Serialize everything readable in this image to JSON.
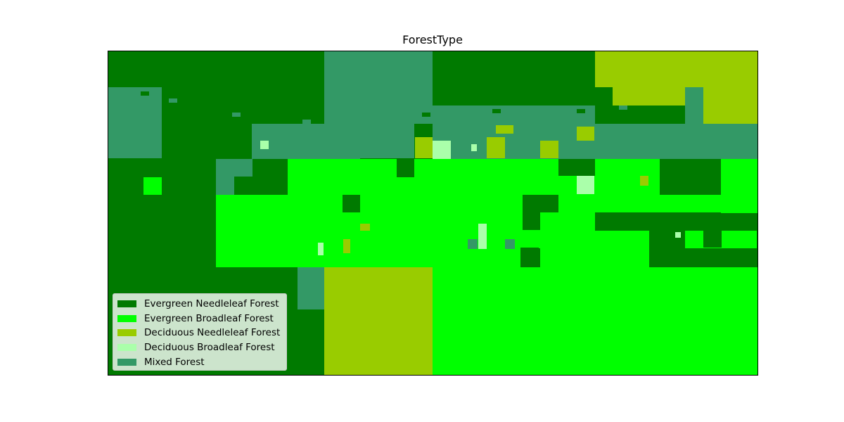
{
  "title": "ForestType",
  "legend": [
    {
      "label": "Evergreen Needleleaf Forest",
      "color": "#007a00"
    },
    {
      "label": "Evergreen Broadleaf Forest",
      "color": "#00ff00"
    },
    {
      "label": "Deciduous Needleleaf Forest",
      "color": "#99cc00"
    },
    {
      "label": "Deciduous Broadleaf Forest",
      "color": "#aaffaa"
    },
    {
      "label": "Mixed Forest",
      "color": "#339966"
    }
  ]
}
